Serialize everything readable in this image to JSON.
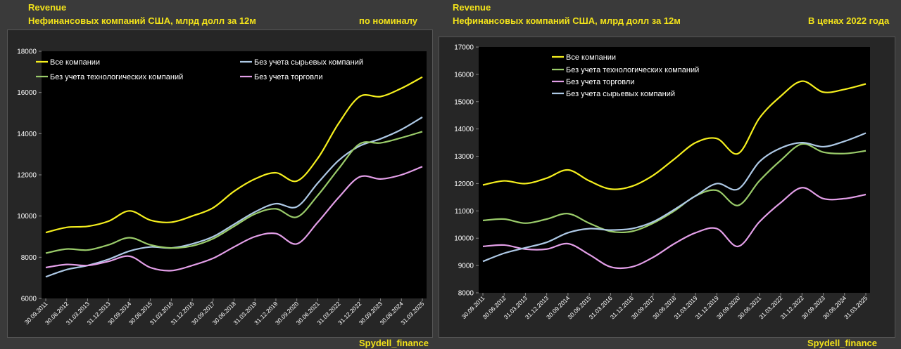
{
  "panels": [
    {
      "header": "Revenue",
      "subtitle": "Нефинансовых компаний США, млрд долл за 12м",
      "note": "по номиналу",
      "footer": "Spydell_finance"
    },
    {
      "header": "Revenue",
      "subtitle": "Нефинансовых компаний США, млрд долл за 12м",
      "note": "В ценах 2022 года",
      "footer": "Spydell_finance"
    }
  ],
  "chart_data": [
    {
      "type": "line",
      "title": "Нефинансовых компаний США, млрд долл за 12м",
      "subtitle": "по номиналу",
      "ylim": [
        6000,
        18000
      ],
      "yticks": [
        6000,
        8000,
        10000,
        12000,
        14000,
        16000,
        18000
      ],
      "grid": false,
      "legend": "top",
      "x_labels": [
        "30.09.2011",
        "30.06.2012",
        "31.03.2013",
        "31.12.2013",
        "30.09.2014",
        "30.06.2015",
        "31.03.2016",
        "31.12.2016",
        "30.09.2017",
        "30.06.2018",
        "31.03.2019",
        "31.12.2019",
        "30.09.2020",
        "30.06.2021",
        "31.03.2022",
        "31.12.2022",
        "30.09.2023",
        "30.06.2024",
        "31.03.2025"
      ],
      "series": [
        {
          "name": "Все компании",
          "color": "#f5ef1e",
          "values": [
            9200,
            9450,
            9500,
            9750,
            10250,
            9800,
            9700,
            10000,
            10400,
            11200,
            11800,
            12100,
            11700,
            12800,
            14500,
            15800,
            15800,
            16200,
            16750
          ]
        },
        {
          "name": "Без учета сырьевых компаний",
          "color": "#aec9e6",
          "values": [
            7050,
            7400,
            7600,
            7900,
            8300,
            8500,
            8450,
            8650,
            9000,
            9600,
            10200,
            10600,
            10450,
            11600,
            12700,
            13400,
            13750,
            14200,
            14800
          ]
        },
        {
          "name": "Без учета технологических компаний",
          "color": "#9acb6a",
          "values": [
            8200,
            8400,
            8350,
            8600,
            8950,
            8600,
            8450,
            8550,
            8900,
            9500,
            10100,
            10350,
            9950,
            11000,
            12300,
            13500,
            13550,
            13800,
            14100
          ]
        },
        {
          "name": "Без учета торговли",
          "color": "#e39fe8",
          "values": [
            7500,
            7650,
            7600,
            7800,
            8050,
            7500,
            7350,
            7600,
            7950,
            8500,
            9000,
            9150,
            8650,
            9700,
            10900,
            11900,
            11800,
            12000,
            12400
          ]
        }
      ]
    },
    {
      "type": "line",
      "title": "Нефинансовых компаний США, млрд долл за 12м",
      "subtitle": "В ценах 2022 года",
      "ylim": [
        8000,
        17000
      ],
      "yticks": [
        8000,
        9000,
        10000,
        11000,
        12000,
        13000,
        14000,
        15000,
        16000,
        17000
      ],
      "grid": false,
      "legend": "top",
      "x_labels": [
        "30.09.2011",
        "30.06.2012",
        "31.03.2013",
        "31.12.2013",
        "30.09.2014",
        "30.06.2015",
        "31.03.2016",
        "31.12.2016",
        "30.09.2017",
        "30.06.2018",
        "31.03.2019",
        "31.12.2019",
        "30.09.2020",
        "30.06.2021",
        "31.03.2022",
        "31.12.2022",
        "30.09.2023",
        "30.06.2024",
        "31.03.2025"
      ],
      "series": [
        {
          "name": "Все компании",
          "color": "#f5ef1e",
          "values": [
            11950,
            12100,
            12000,
            12200,
            12500,
            12100,
            11800,
            11900,
            12300,
            12900,
            13500,
            13650,
            13100,
            14400,
            15200,
            15750,
            15350,
            15450,
            15650
          ]
        },
        {
          "name": "Без учета технологических компаний",
          "color": "#9acb6a",
          "values": [
            10650,
            10700,
            10550,
            10700,
            10900,
            10550,
            10250,
            10250,
            10550,
            11000,
            11550,
            11750,
            11200,
            12100,
            12850,
            13450,
            13150,
            13100,
            13200
          ]
        },
        {
          "name": "Без учета торговли",
          "color": "#e39fe8",
          "values": [
            9700,
            9750,
            9600,
            9600,
            9800,
            9400,
            8950,
            8950,
            9300,
            9800,
            10200,
            10350,
            9700,
            10600,
            11300,
            11850,
            11450,
            11450,
            11600
          ]
        },
        {
          "name": "Без учета сырьевых компаний",
          "color": "#aec9e6",
          "values": [
            9150,
            9450,
            9650,
            9850,
            10200,
            10350,
            10300,
            10350,
            10600,
            11050,
            11550,
            12000,
            11800,
            12800,
            13300,
            13500,
            13350,
            13550,
            13850
          ]
        }
      ]
    }
  ]
}
